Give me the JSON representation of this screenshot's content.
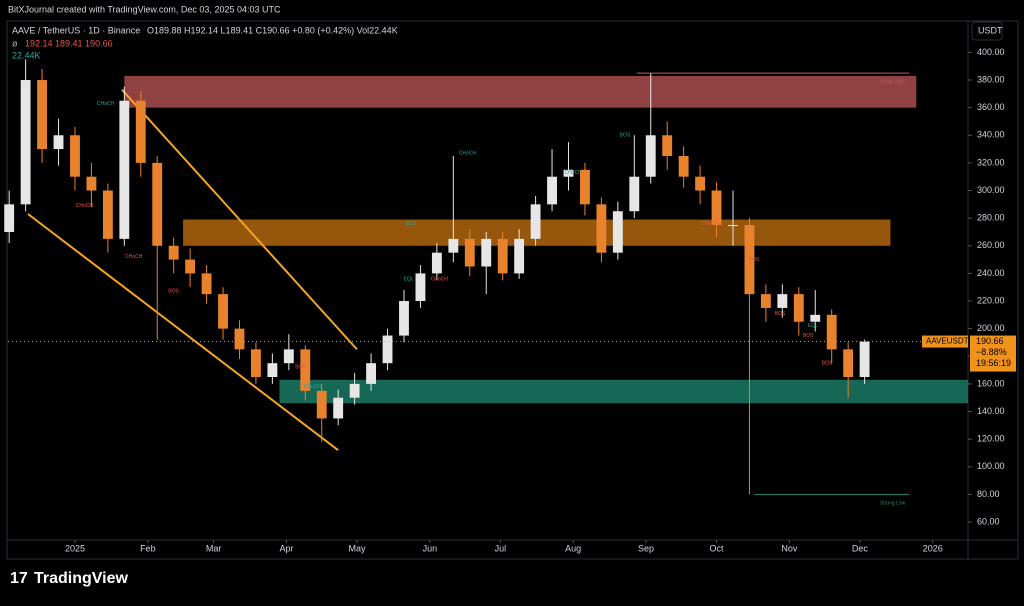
{
  "header": {
    "credit": "BitXJournal created with TradingView.com, Dec 03, 2025 04:03 UTC",
    "symbol": "AAVE / TetherUS · 1D · Binance",
    "ohlc": "O189.88 H192.14 L189.41 C190.66 +0.80 (+0.42%) Vol22.44K",
    "indicator": "192.14 189.41 190.66",
    "volume": "22.44K",
    "currency": "USDT"
  },
  "footer": {
    "brand": "TradingView"
  },
  "chart_data": {
    "type": "candlestick",
    "x": [
      -28,
      -21,
      -14,
      -7,
      0,
      7,
      14,
      21,
      28,
      35,
      42,
      49,
      56,
      63,
      70,
      77,
      84,
      91,
      98,
      105,
      112,
      119,
      126,
      133,
      140,
      147,
      154,
      161,
      168,
      175,
      182,
      189,
      196,
      203,
      210,
      217,
      224,
      231,
      238,
      245,
      252,
      259,
      266,
      273,
      280,
      287,
      294,
      301,
      308,
      315,
      322,
      329,
      336
    ],
    "open": [
      270,
      290,
      380,
      330,
      340,
      310,
      300,
      265,
      365,
      320,
      260,
      250,
      240,
      225,
      200,
      185,
      165,
      175,
      185,
      155,
      135,
      150,
      160,
      175,
      195,
      220,
      240,
      255,
      265,
      245,
      265,
      240,
      265,
      290,
      310,
      315,
      290,
      255,
      285,
      310,
      340,
      325,
      310,
      300,
      275,
      275,
      225,
      215,
      225,
      205,
      210,
      185,
      165
    ],
    "high": [
      300,
      395,
      388,
      352,
      346,
      320,
      305,
      375,
      372,
      325,
      266,
      258,
      246,
      230,
      206,
      190,
      182,
      196,
      188,
      160,
      156,
      168,
      182,
      200,
      228,
      246,
      262,
      325,
      272,
      270,
      270,
      272,
      296,
      330,
      335,
      320,
      295,
      292,
      340,
      385,
      350,
      332,
      318,
      306,
      300,
      280,
      232,
      232,
      230,
      228,
      214,
      190,
      192.14
    ],
    "low": [
      262,
      285,
      320,
      318,
      300,
      288,
      255,
      260,
      310,
      192,
      240,
      230,
      218,
      192,
      178,
      160,
      160,
      170,
      148,
      118,
      130,
      145,
      155,
      170,
      190,
      215,
      235,
      248,
      238,
      225,
      235,
      236,
      260,
      285,
      300,
      282,
      248,
      250,
      280,
      305,
      315,
      302,
      290,
      266,
      260,
      80,
      205,
      208,
      195,
      198,
      175,
      150,
      160
    ],
    "close": [
      290,
      380,
      330,
      340,
      310,
      300,
      265,
      365,
      320,
      260,
      250,
      240,
      225,
      200,
      185,
      165,
      175,
      185,
      155,
      135,
      150,
      160,
      175,
      195,
      220,
      240,
      255,
      265,
      245,
      265,
      240,
      265,
      290,
      310,
      315,
      290,
      255,
      285,
      310,
      340,
      325,
      310,
      300,
      275,
      275,
      225,
      215,
      225,
      205,
      210,
      185,
      165,
      190.66
    ],
    "up_color": "#e6e6e6",
    "down_color": "#e8822c",
    "xlim": [
      -28.5,
      380
    ],
    "ylim": [
      47,
      422
    ],
    "xticks": [
      {
        "value": 0,
        "label": "2025"
      },
      {
        "value": 31,
        "label": "Feb"
      },
      {
        "value": 59,
        "label": "Mar"
      },
      {
        "value": 90,
        "label": "Apr"
      },
      {
        "value": 120,
        "label": "May"
      },
      {
        "value": 151,
        "label": "Jun"
      },
      {
        "value": 181,
        "label": "Jul"
      },
      {
        "value": 212,
        "label": "Aug"
      },
      {
        "value": 243,
        "label": "Sep"
      },
      {
        "value": 273,
        "label": "Oct"
      },
      {
        "value": 304,
        "label": "Nov"
      },
      {
        "value": 334,
        "label": "Dec"
      },
      {
        "value": 365,
        "label": "2026"
      }
    ],
    "yticks": [
      {
        "value": 60,
        "label": "60.00"
      },
      {
        "value": 80,
        "label": "80.00"
      },
      {
        "value": 100,
        "label": "100.00"
      },
      {
        "value": 120,
        "label": "120.00"
      },
      {
        "value": 140,
        "label": "140.00"
      },
      {
        "value": 160,
        "label": "160.00"
      },
      {
        "value": 180,
        "label": "180.00"
      },
      {
        "value": 200,
        "label": "200.00"
      },
      {
        "value": 220,
        "label": "220.00"
      },
      {
        "value": 240,
        "label": "240.00"
      },
      {
        "value": 260,
        "label": "260.00"
      },
      {
        "value": 280,
        "label": "280.00"
      },
      {
        "value": 300,
        "label": "300.00"
      },
      {
        "value": 320,
        "label": "320.00"
      },
      {
        "value": 340,
        "label": "340.00"
      },
      {
        "value": 360,
        "label": "360.00"
      },
      {
        "value": 380,
        "label": "380.00"
      },
      {
        "value": 400,
        "label": "400.00"
      }
    ],
    "zones": [
      {
        "x": [
          21,
          358
        ],
        "y": [
          360,
          383
        ],
        "color": "#c0585a"
      },
      {
        "x": [
          46,
          347
        ],
        "y": [
          260,
          279
        ],
        "color": "#c87410"
      },
      {
        "x": [
          87,
          380
        ],
        "y": [
          146,
          163
        ],
        "color": "#1e8a72"
      }
    ],
    "trendlines": [
      {
        "x": [
          20,
          120
        ],
        "y": [
          373,
          185
        ],
        "color": "#f5a623"
      },
      {
        "x": [
          -20,
          112
        ],
        "y": [
          283,
          112
        ],
        "color": "#f5a623"
      }
    ],
    "levels": [
      {
        "text": "Weak High",
        "x": [
          239,
          355
        ],
        "y": 385,
        "color": "#c0585a"
      },
      {
        "text": "Strong Low",
        "x": [
          289,
          355
        ],
        "y": 80,
        "color": "#1e8a72"
      }
    ],
    "annotations": [
      {
        "text": "CHoCH",
        "x": 13,
        "y": 363,
        "color": "#26a69a"
      },
      {
        "text": "CHoCH",
        "x": 4,
        "y": 289,
        "color": "#ef5350"
      },
      {
        "text": "CHoCH",
        "x": 25,
        "y": 252,
        "color": "#ef5350"
      },
      {
        "text": "BOS",
        "x": 42,
        "y": 227,
        "color": "#ef5350"
      },
      {
        "text": "BOS",
        "x": 96,
        "y": 172,
        "color": "#ef5350"
      },
      {
        "text": "CHoCH",
        "x": 101,
        "y": 158,
        "color": "#26a69a"
      },
      {
        "text": "BOS",
        "x": 143,
        "y": 276,
        "color": "#26a69a"
      },
      {
        "text": "EQL",
        "x": 142,
        "y": 236,
        "color": "#26a69a"
      },
      {
        "text": "CHoCH",
        "x": 155,
        "y": 236,
        "color": "#ef5350"
      },
      {
        "text": "CHoCH",
        "x": 167,
        "y": 327,
        "color": "#26a69a"
      },
      {
        "text": "CHoCH",
        "x": 212,
        "y": 313,
        "color": "#26a69a"
      },
      {
        "text": "BOS",
        "x": 234,
        "y": 340,
        "color": "#26a69a"
      },
      {
        "text": "CHoCH",
        "x": 270,
        "y": 276,
        "color": "#ef5350"
      },
      {
        "text": "BOS",
        "x": 289,
        "y": 250,
        "color": "#ef5350"
      },
      {
        "text": "BOS",
        "x": 300,
        "y": 211,
        "color": "#ef5350"
      },
      {
        "text": "EQL",
        "x": 314,
        "y": 202,
        "color": "#26a69a"
      },
      {
        "text": "BOS",
        "x": 312,
        "y": 195,
        "color": "#ef5350"
      },
      {
        "text": "BOS",
        "x": 320,
        "y": 175,
        "color": "#ef5350"
      }
    ],
    "price_tag": {
      "symbol": "AAVEUSDT",
      "price": 190.66,
      "change": "−8.88%",
      "countdown": "19:56:19",
      "color": "#f0931a"
    }
  }
}
